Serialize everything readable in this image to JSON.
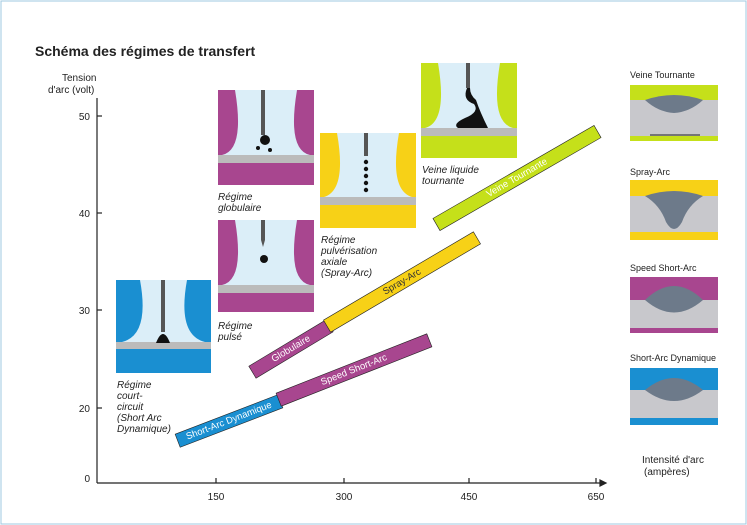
{
  "title": "Schéma des régimes de transfert",
  "y_axis": {
    "label_lines": [
      "Tension",
      "d'arc (volt)"
    ],
    "ticks": [
      "50",
      "40",
      "30",
      "20",
      "0"
    ]
  },
  "x_axis": {
    "label_lines": [
      "Intensité d'arc",
      "(ampères)"
    ],
    "ticks": [
      "150",
      "300",
      "450",
      "650"
    ]
  },
  "bands": [
    "Short-Arc Dynamique",
    "Speed Short-Arc",
    "Globulaire",
    "Spray-Arc",
    "Veine Tournante"
  ],
  "illustrations": [
    {
      "caption_lines": [
        "Régime",
        "court-",
        "circuit",
        "(Short Arc",
        "Dynamique)"
      ]
    },
    {
      "caption_lines": [
        "Régime",
        "globulaire"
      ]
    },
    {
      "caption_lines": [
        "Régime",
        "pulsé"
      ]
    },
    {
      "caption_lines": [
        "Régime",
        "pulvérisation",
        "axiale",
        "(Spray-Arc)"
      ]
    },
    {
      "caption_lines": [
        "Veine liquide",
        "tournante"
      ]
    }
  ],
  "panels": [
    "Veine Tournante",
    "Spray-Arc",
    "Speed Short-Arc",
    "Short-Arc Dynamique"
  ]
}
